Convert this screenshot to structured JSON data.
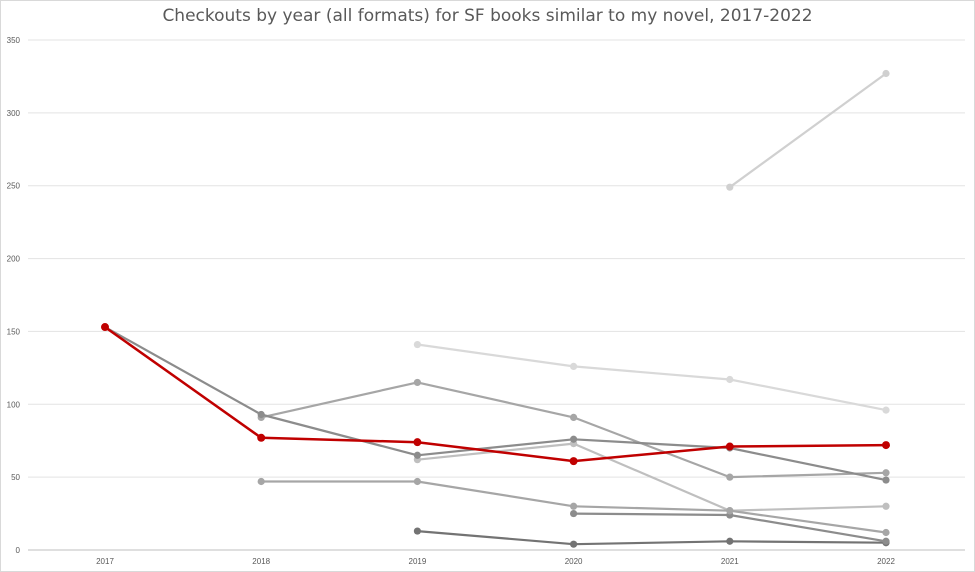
{
  "chart_data": {
    "type": "line",
    "title": "Checkouts by year (all formats) for SF books similar to my novel, 2017-2022",
    "xlabel": "",
    "ylabel": "",
    "categories": [
      "2017",
      "2018",
      "2019",
      "2020",
      "2021",
      "2022"
    ],
    "ylim": [
      0,
      350
    ],
    "yticks": [
      0,
      50,
      100,
      150,
      200,
      250,
      300,
      350
    ],
    "grid": true,
    "legend": "none",
    "series": [
      {
        "color": "#c00000",
        "values": [
          153,
          77,
          74,
          61,
          71,
          72
        ]
      },
      {
        "color": "#8c8c8c",
        "values": [
          153,
          93,
          65,
          76,
          70,
          48
        ]
      },
      {
        "color": "#a6a6a6",
        "values": [
          null,
          91,
          115,
          91,
          50,
          53
        ]
      },
      {
        "color": "#a6a6a6",
        "values": [
          null,
          47,
          47,
          30,
          27,
          12
        ]
      },
      {
        "color": "#bfbfbf",
        "values": [
          null,
          null,
          62,
          73,
          27,
          30
        ]
      },
      {
        "color": "#d9d9d9",
        "values": [
          null,
          null,
          141,
          126,
          117,
          96
        ]
      },
      {
        "color": "#d0d0d0",
        "values": [
          null,
          null,
          null,
          null,
          249,
          327
        ]
      },
      {
        "color": "#8c8c8c",
        "values": [
          null,
          null,
          null,
          25,
          24,
          6
        ]
      },
      {
        "color": "#737373",
        "values": [
          null,
          null,
          13,
          4,
          6,
          5
        ]
      }
    ]
  }
}
